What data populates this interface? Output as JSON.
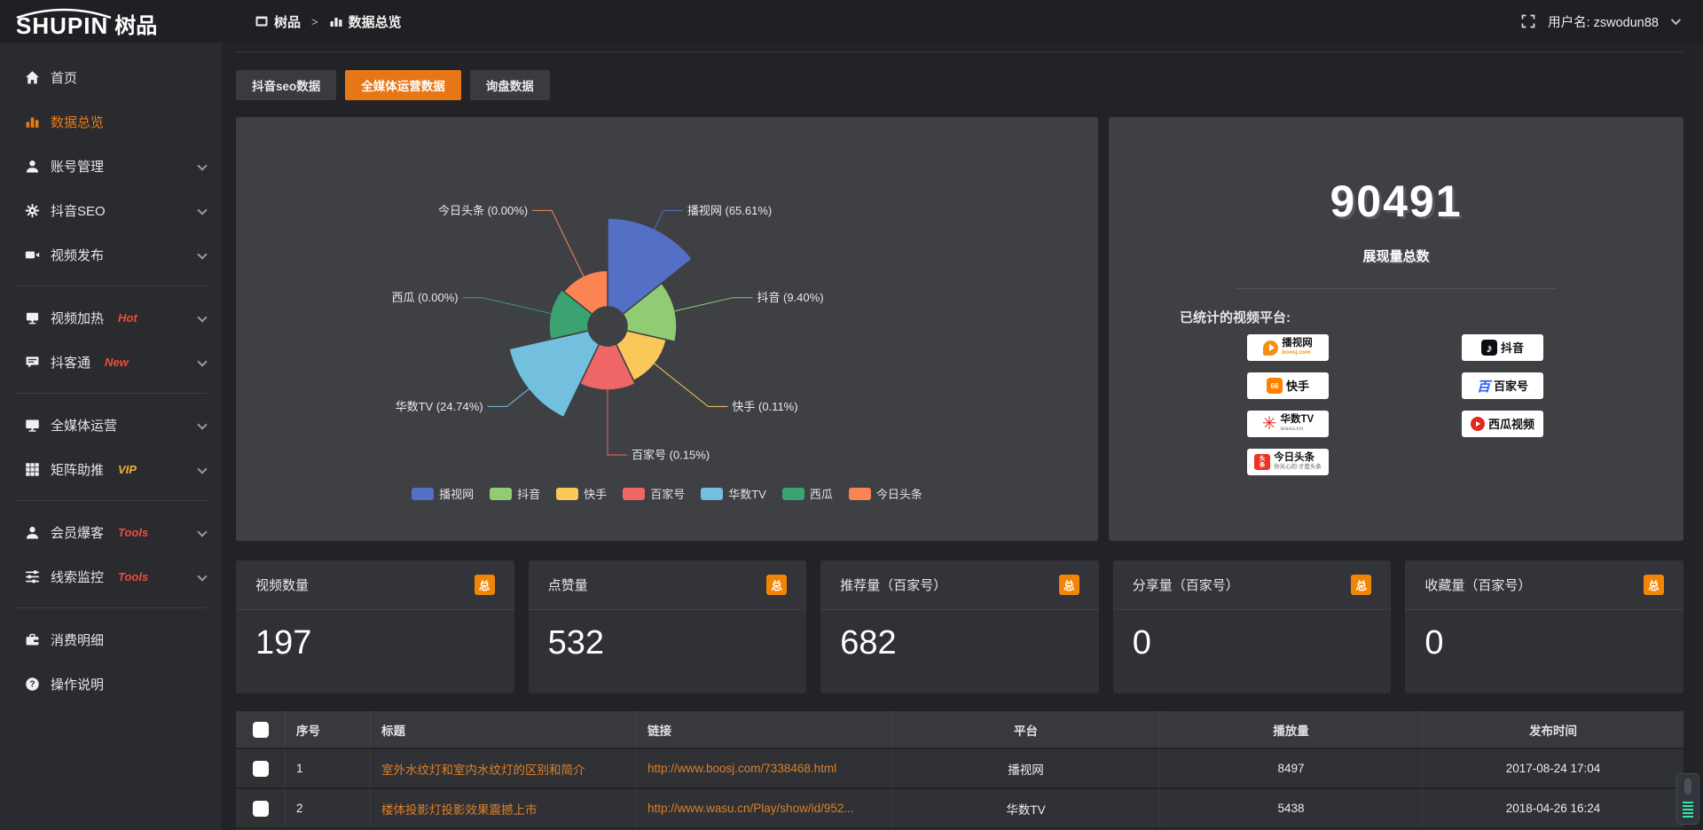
{
  "theme": {
    "accent_orange": "#e67616",
    "badge_orange": "#f08506",
    "link_orange": "#de7f2b",
    "badge_red": "#f3493d",
    "badge_yellow": "#f1af37",
    "panel_bg": "#3e4044",
    "sidebar_bg": "#292b2f"
  },
  "header": {
    "logo_en": "SHUPIN",
    "logo_cn": "树品",
    "breadcrumb": [
      "树品",
      "数据总览"
    ],
    "breadcrumb_sep": ">",
    "username": "用户名: zswodun88"
  },
  "sidebar": {
    "items": [
      {
        "id": "home",
        "label": "首页",
        "icon": "home-icon"
      },
      {
        "id": "data-overview",
        "label": "数据总览",
        "icon": "chart-bar-icon",
        "active": true
      },
      {
        "id": "account-manage",
        "label": "账号管理",
        "icon": "user-icon",
        "chevron": true
      },
      {
        "id": "douyin-seo",
        "label": "抖音SEO",
        "icon": "gear-icon",
        "chevron": true
      },
      {
        "id": "video-publish",
        "label": "视频发布",
        "icon": "video-icon",
        "chevron": true
      },
      {
        "divider": true
      },
      {
        "id": "video-heat",
        "label": "视频加热",
        "icon": "monitor-icon",
        "badge": "Hot",
        "badge_color": "#f3493d",
        "chevron": true
      },
      {
        "id": "douketong",
        "label": "抖客通",
        "icon": "chat-icon",
        "badge": "New",
        "badge_color": "#f3493d",
        "chevron": true
      },
      {
        "divider": true
      },
      {
        "id": "media-operation",
        "label": "全媒体运营",
        "icon": "screen-icon",
        "chevron": true
      },
      {
        "id": "matrix-boost",
        "label": "矩阵助推",
        "icon": "grid-icon",
        "badge": "VIP",
        "badge_color": "#f1af37",
        "chevron": true
      },
      {
        "divider": true
      },
      {
        "id": "member-baoke",
        "label": "会员爆客",
        "icon": "member-icon",
        "badge": "Tools",
        "badge_color": "#f3493d",
        "chevron": true
      },
      {
        "id": "clue-monitor",
        "label": "线索监控",
        "icon": "sliders-icon",
        "badge": "Tools",
        "badge_color": "#f3493d",
        "chevron": true
      },
      {
        "divider": true
      },
      {
        "id": "consume-detail",
        "label": "消费明细",
        "icon": "wallet-icon"
      },
      {
        "id": "operation-guide",
        "label": "操作说明",
        "icon": "question-icon"
      }
    ]
  },
  "tabs": [
    {
      "id": "douyin-seo-data",
      "label": "抖音seo数据",
      "active": false
    },
    {
      "id": "media-operation-data",
      "label": "全媒体运营数据",
      "active": true
    },
    {
      "id": "inquiry-data",
      "label": "询盘数据",
      "active": false
    }
  ],
  "chart_data": {
    "type": "pie",
    "rose": true,
    "hole_radius": 22,
    "center": [
      419,
      236
    ],
    "elbow_radius": 145,
    "legend_position": "bottom",
    "items": [
      {
        "name": "播视网",
        "percent": "65.61%",
        "color": "#5470c6",
        "radius": 122
      },
      {
        "name": "抖音",
        "percent": "9.40%",
        "color": "#91cc75",
        "radius": 78
      },
      {
        "name": "快手",
        "percent": "0.11%",
        "color": "#fac858",
        "radius": 68
      },
      {
        "name": "百家号",
        "percent": "0.15%",
        "color": "#ee6666",
        "radius": 72
      },
      {
        "name": "华数TV",
        "percent": "24.74%",
        "color": "#73c0de",
        "radius": 114
      },
      {
        "name": "西瓜",
        "percent": "0.00%",
        "color": "#3ba272",
        "radius": 66
      },
      {
        "name": "今日头条",
        "percent": "0.00%",
        "color": "#fc8452",
        "radius": 63
      }
    ]
  },
  "summary": {
    "total_value": "90491",
    "total_label": "展现量总数",
    "platforms_label": "已统计的视频平台:",
    "platforms": [
      {
        "name": "播视网",
        "sub": "boosj.com",
        "column": "left",
        "icon": "boosj-logo"
      },
      {
        "name": "快手",
        "column": "left",
        "icon": "kuaishou-logo"
      },
      {
        "name": "华数TV",
        "sub": "wasu.cn",
        "column": "left",
        "icon": "wasu-logo"
      },
      {
        "name": "今日头条",
        "sub": "你关心的 才是头条",
        "column": "left",
        "icon": "toutiao-logo"
      },
      {
        "name": "抖音",
        "column": "right",
        "icon": "douyin-logo"
      },
      {
        "name": "百家号",
        "column": "right",
        "icon": "baijiahao-logo"
      },
      {
        "name": "西瓜视频",
        "column": "right",
        "icon": "xigua-logo"
      }
    ]
  },
  "stat_cards": [
    {
      "label": "视频数量",
      "badge": "总",
      "value": "197"
    },
    {
      "label": "点赞量",
      "badge": "总",
      "value": "532"
    },
    {
      "label": "推荐量（百家号）",
      "badge": "总",
      "value": "682"
    },
    {
      "label": "分享量（百家号）",
      "badge": "总",
      "value": "0"
    },
    {
      "label": "收藏量（百家号）",
      "badge": "总",
      "value": "0"
    }
  ],
  "table": {
    "columns": [
      "序号",
      "标题",
      "链接",
      "平台",
      "播放量",
      "发布时间"
    ],
    "rows": [
      {
        "index": "1",
        "title": "室外水纹灯和室内水纹灯的区别和简介",
        "link": "http://www.boosj.com/7338468.html",
        "platform": "播视网",
        "plays": "8497",
        "time": "2017-08-24 17:04"
      },
      {
        "index": "2",
        "title": "楼体投影灯投影效果震撼上市",
        "link": "http://www.wasu.cn/Play/show/id/952...",
        "platform": "华数TV",
        "plays": "5438",
        "time": "2018-04-26 16:24"
      }
    ]
  }
}
